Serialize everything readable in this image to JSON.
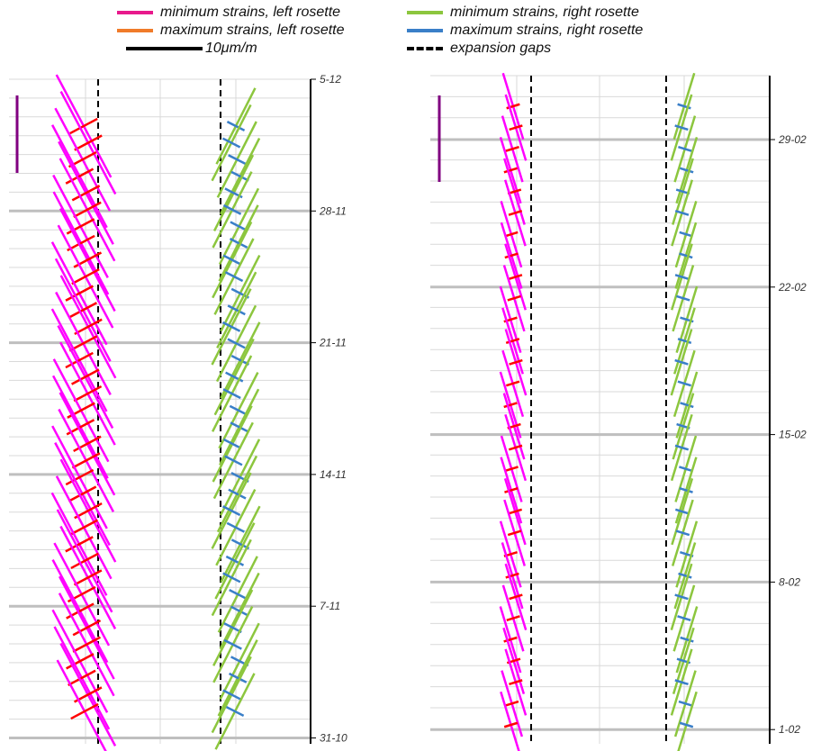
{
  "legend": {
    "items": [
      {
        "label": "minimum strains, left rosette",
        "color": "#e8198c",
        "style": "solid"
      },
      {
        "label": "maximum strains, left rosette",
        "color": "#f07b2a",
        "style": "solid"
      },
      {
        "label": "10μm/m",
        "color": "#000000",
        "style": "solid"
      },
      {
        "label": "minimum strains, right rosette",
        "color": "#8cc63e",
        "style": "solid"
      },
      {
        "label": "maximum strains, right rosette",
        "color": "#3a7fc8",
        "style": "solid"
      },
      {
        "label": "expansion gaps",
        "color": "#000000",
        "style": "dashed"
      }
    ]
  },
  "colors": {
    "min_left": "#ff00ff",
    "max_left": "#ff0000",
    "min_right": "#8cc63e",
    "max_right": "#3a7fc8",
    "scale_bar": "#800080",
    "gridline": "#d9d9d9",
    "major_gridline": "#bfbfbf"
  },
  "chart_data": [
    {
      "type": "other",
      "description_type": "strain-rosette-glyph-timeline",
      "y_axis": {
        "side": "right",
        "tick_labels": [
          "5-12",
          "28-11",
          "21-11",
          "14-11",
          "7-11",
          "31-10"
        ],
        "tick_days_before_top": [
          0,
          7,
          14,
          21,
          28,
          35
        ]
      },
      "scale_bar_microstrain": 10,
      "expansion_gap_columns": [
        "left rosette",
        "right rosette"
      ],
      "glyph_count": 36,
      "left_rosette": {
        "min_strain_angle_deg": 28,
        "min_strain_magnitude": 15,
        "max_strain_magnitude": 4
      },
      "right_rosette": {
        "min_strain_angle_deg": -27,
        "min_strain_magnitude": 11,
        "max_strain_magnitude": 2.5
      }
    },
    {
      "type": "other",
      "description_type": "strain-rosette-glyph-timeline",
      "y_axis": {
        "side": "right",
        "tick_labels": [
          "29-02",
          "22-02",
          "15-02",
          "8-02",
          "1-02"
        ],
        "tick_days_before_top": [
          0,
          7,
          14,
          21,
          28
        ]
      },
      "scale_bar_microstrain": 10,
      "expansion_gap_columns": [
        "left rosette",
        "right rosette"
      ],
      "glyph_count": 30,
      "left_rosette": {
        "min_strain_angle_deg": 17,
        "min_strain_magnitude": 8,
        "max_strain_magnitude": 1.6
      },
      "right_rosette": {
        "min_strain_angle_deg": -17,
        "min_strain_magnitude": 8,
        "max_strain_magnitude": 1.6
      }
    }
  ]
}
